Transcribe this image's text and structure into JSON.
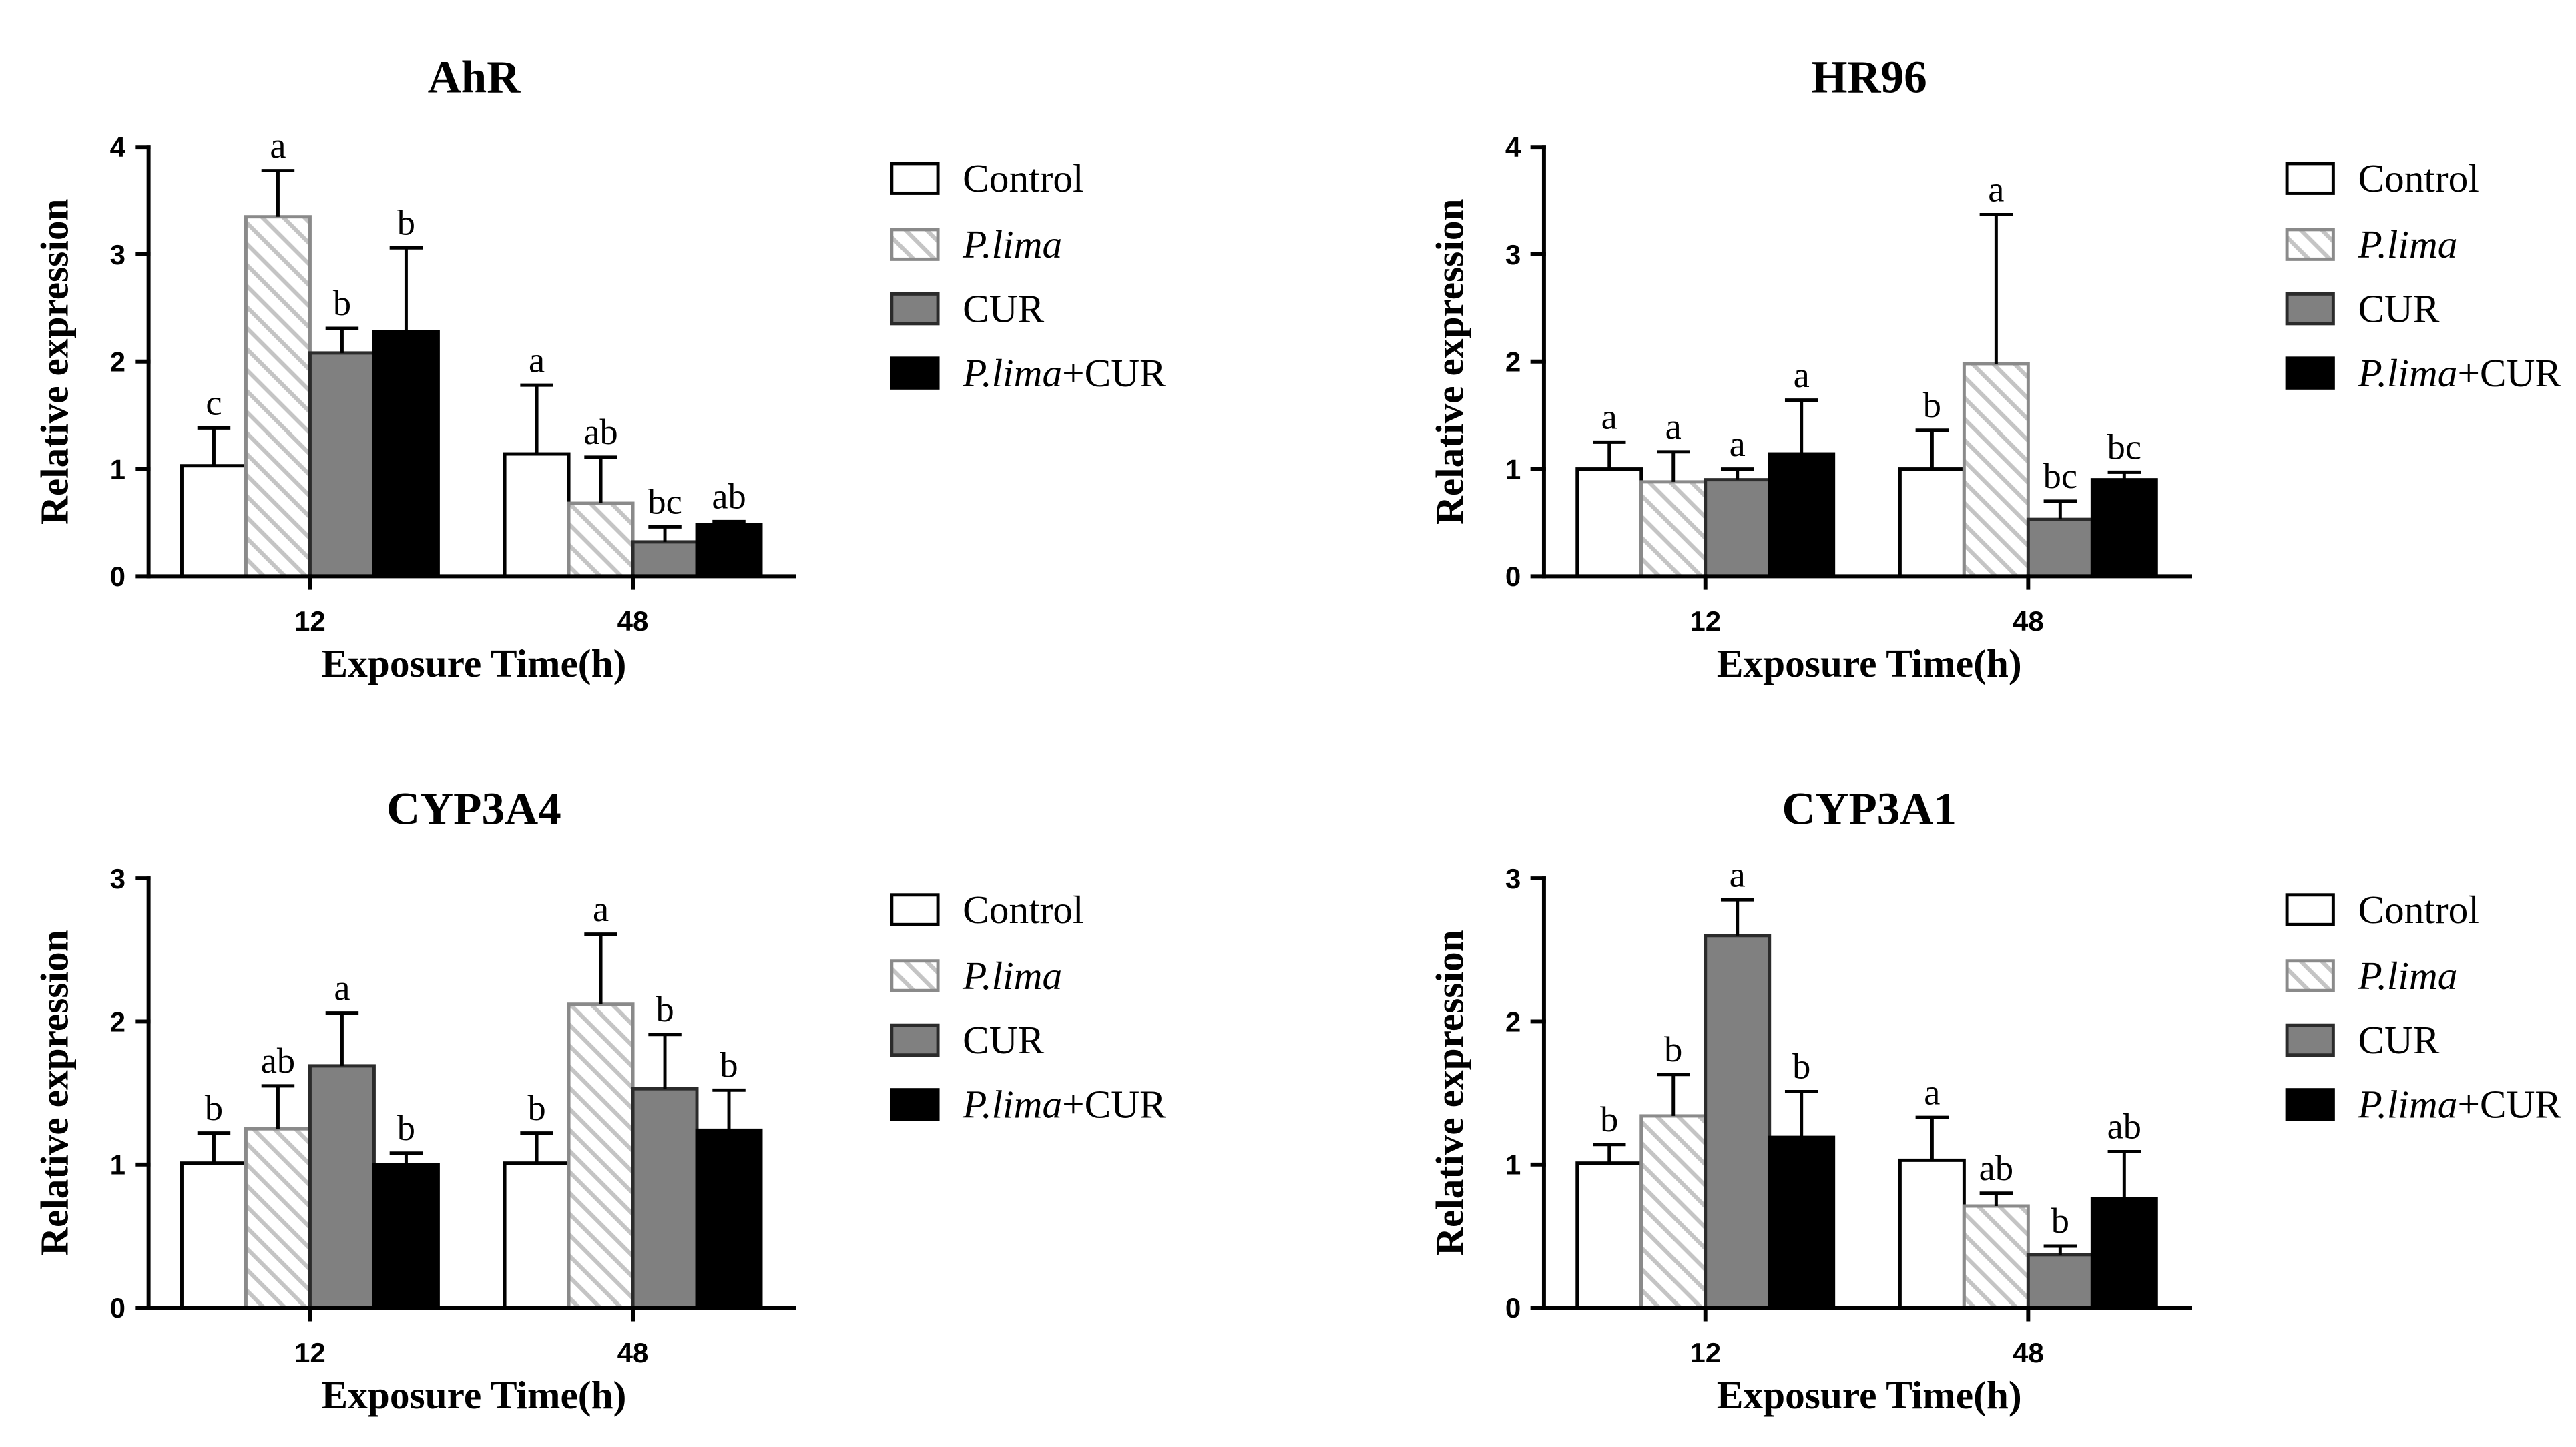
{
  "series_styles": [
    {
      "fill": "#ffffff",
      "stroke": "#000000"
    },
    {
      "fill": "#ffffff",
      "stroke": "#8a8a8a",
      "hatch": true,
      "hatch_color": "#c4c4c4"
    },
    {
      "fill": "#808080",
      "stroke": "#2b2b2b"
    },
    {
      "fill": "#000000",
      "stroke": "#000000"
    }
  ],
  "chart_data": [
    {
      "type": "bar",
      "title": "AhR",
      "xlabel": "Exposure Time(h)",
      "ylabel": "Relative expression",
      "categories": [
        "12",
        "48"
      ],
      "ylim": [
        0,
        4
      ],
      "yticks": [
        "0",
        "1",
        "2",
        "3",
        "4"
      ],
      "series": [
        {
          "name": "Control",
          "values": [
            1.03,
            1.14
          ],
          "errors": [
            0.35,
            0.64
          ],
          "letters": [
            "c",
            "a"
          ]
        },
        {
          "name": "P.lima",
          "values": [
            3.35,
            0.68
          ],
          "errors": [
            0.43,
            0.43
          ],
          "letters": [
            "a",
            "ab"
          ]
        },
        {
          "name": "CUR",
          "values": [
            2.08,
            0.32
          ],
          "errors": [
            0.23,
            0.14
          ],
          "letters": [
            "b",
            "bc"
          ]
        },
        {
          "name": "P.lima+CUR",
          "values": [
            2.28,
            0.48
          ],
          "errors": [
            0.78,
            0.03
          ],
          "letters": [
            "b",
            "ab"
          ]
        }
      ]
    },
    {
      "type": "bar",
      "title": "HR96",
      "xlabel": "Exposure Time(h)",
      "ylabel": "Relative expression",
      "categories": [
        "12",
        "48"
      ],
      "ylim": [
        0,
        4
      ],
      "yticks": [
        "0",
        "1",
        "2",
        "3",
        "4"
      ],
      "series": [
        {
          "name": "Control",
          "values": [
            1.0,
            1.0
          ],
          "errors": [
            0.25,
            0.36
          ],
          "letters": [
            "a",
            "b"
          ]
        },
        {
          "name": "P.lima",
          "values": [
            0.88,
            1.98
          ],
          "errors": [
            0.28,
            1.39
          ],
          "letters": [
            "a",
            "a"
          ]
        },
        {
          "name": "CUR",
          "values": [
            0.9,
            0.53
          ],
          "errors": [
            0.1,
            0.17
          ],
          "letters": [
            "a",
            "bc"
          ]
        },
        {
          "name": "P.lima+CUR",
          "values": [
            1.14,
            0.9
          ],
          "errors": [
            0.5,
            0.07
          ],
          "letters": [
            "a",
            "bc"
          ]
        }
      ]
    },
    {
      "type": "bar",
      "title": "CYP3A4",
      "xlabel": "Exposure Time(h)",
      "ylabel": "Relative expression",
      "categories": [
        "12",
        "48"
      ],
      "ylim": [
        0,
        3
      ],
      "yticks": [
        "0",
        "1",
        "2",
        "3"
      ],
      "series": [
        {
          "name": "Control",
          "values": [
            1.01,
            1.01
          ],
          "errors": [
            0.21,
            0.21
          ],
          "letters": [
            "b",
            "b"
          ]
        },
        {
          "name": "P.lima",
          "values": [
            1.25,
            2.12
          ],
          "errors": [
            0.3,
            0.49
          ],
          "letters": [
            "ab",
            "a"
          ]
        },
        {
          "name": "CUR",
          "values": [
            1.69,
            1.53
          ],
          "errors": [
            0.37,
            0.38
          ],
          "letters": [
            "a",
            "b"
          ]
        },
        {
          "name": "P.lima+CUR",
          "values": [
            1.0,
            1.24
          ],
          "errors": [
            0.08,
            0.28
          ],
          "letters": [
            "b",
            "b"
          ]
        }
      ]
    },
    {
      "type": "bar",
      "title": "CYP3A1",
      "xlabel": "Exposure Time(h)",
      "ylabel": "Relative expression",
      "categories": [
        "12",
        "48"
      ],
      "ylim": [
        0,
        3
      ],
      "yticks": [
        "0",
        "1",
        "2",
        "3"
      ],
      "series": [
        {
          "name": "Control",
          "values": [
            1.01,
            1.03
          ],
          "errors": [
            0.13,
            0.3
          ],
          "letters": [
            "b",
            "a"
          ]
        },
        {
          "name": "P.lima",
          "values": [
            1.34,
            0.71
          ],
          "errors": [
            0.29,
            0.09
          ],
          "letters": [
            "b",
            "ab"
          ]
        },
        {
          "name": "CUR",
          "values": [
            2.6,
            0.37
          ],
          "errors": [
            0.25,
            0.06
          ],
          "letters": [
            "a",
            "b"
          ]
        },
        {
          "name": "P.lima+CUR",
          "values": [
            1.19,
            0.76
          ],
          "errors": [
            0.32,
            0.33
          ],
          "letters": [
            "b",
            "ab"
          ]
        }
      ]
    }
  ]
}
